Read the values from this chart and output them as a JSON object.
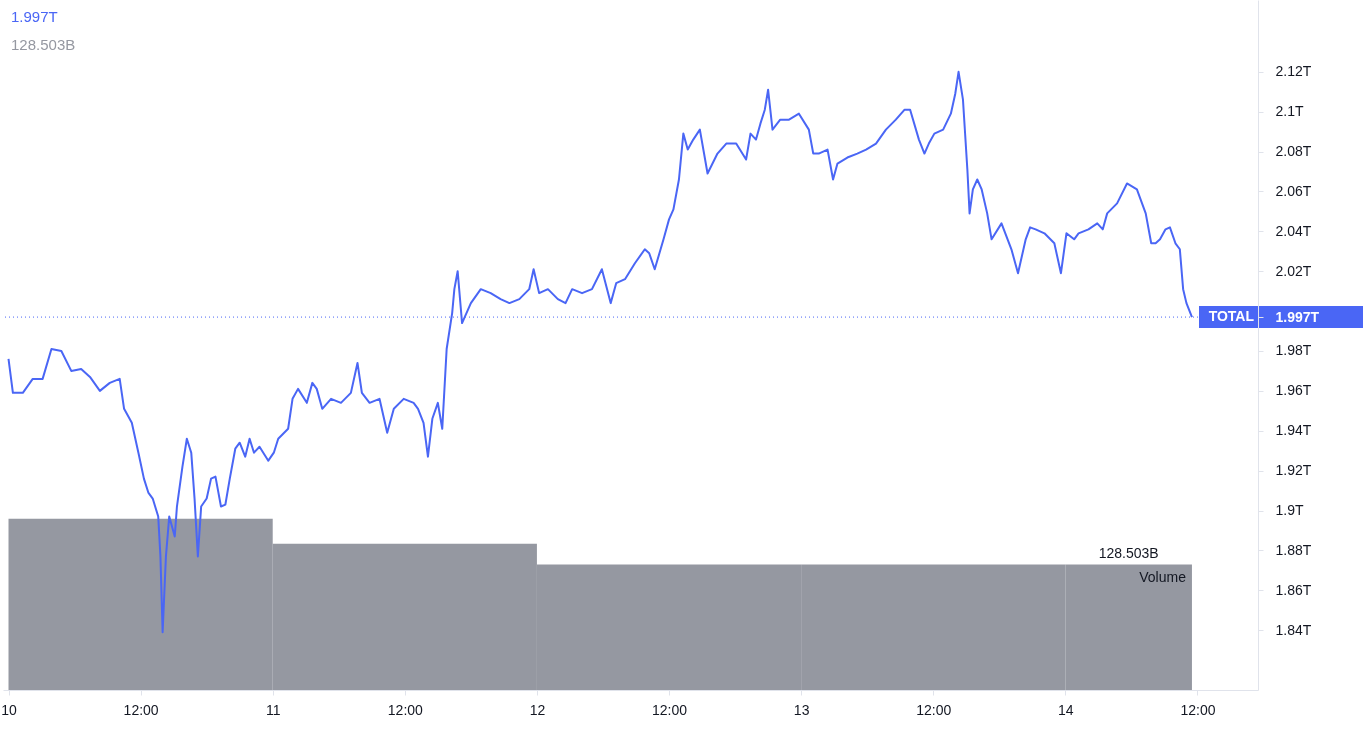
{
  "chart_data": {
    "type": "line",
    "xlim": [
      "--01-09T23:30",
      "--01-14T17:30"
    ],
    "xticks": [
      {
        "value": "--01-10",
        "label": "10"
      },
      {
        "value": "--01-10T12:00",
        "label": "12:00"
      },
      {
        "value": "--01-11",
        "label": "11"
      },
      {
        "value": "--01-11T12:00",
        "label": "12:00"
      },
      {
        "value": "--01-12",
        "label": "12"
      },
      {
        "value": "--01-12T12:00",
        "label": "12:00"
      },
      {
        "value": "--01-13",
        "label": "13"
      },
      {
        "value": "--01-13T12:00",
        "label": "12:00"
      },
      {
        "value": "--01-14",
        "label": "14"
      },
      {
        "value": "--01-14T12:00",
        "label": "12:00"
      }
    ],
    "ylim": [
      1.81,
      2.156
    ],
    "yticks": [
      {
        "value": 1.84,
        "label": "1.84T"
      },
      {
        "value": 1.86,
        "label": "1.86T"
      },
      {
        "value": 1.88,
        "label": "1.88T"
      },
      {
        "value": 1.9,
        "label": "1.9T"
      },
      {
        "value": 1.92,
        "label": "1.92T"
      },
      {
        "value": 1.94,
        "label": "1.94T"
      },
      {
        "value": 1.96,
        "label": "1.96T"
      },
      {
        "value": 1.98,
        "label": "1.98T"
      },
      {
        "value": 1.997,
        "label": "1.997T"
      },
      {
        "value": 2.02,
        "label": "2.02T"
      },
      {
        "value": 2.04,
        "label": "2.04T"
      },
      {
        "value": 2.06,
        "label": "2.06T"
      },
      {
        "value": 2.08,
        "label": "2.08T"
      },
      {
        "value": 2.1,
        "label": "2.1T"
      },
      {
        "value": 2.12,
        "label": "2.12T"
      }
    ],
    "y2lim": [
      0,
      706.8
    ],
    "y2label": "Volume",
    "annotations": [
      "1.997T",
      "128.503B"
    ],
    "ref_lines": [
      {
        "axis": "y",
        "value": 1.997,
        "label": "TOTAL",
        "color": "#4a66f5",
        "line_style": "dotted"
      }
    ],
    "series": [
      {
        "type": "bar",
        "axis": "y2",
        "color": "#9598a1",
        "x": [
          "--01-10T12:00",
          "--01-11T12:00",
          "--01-12T12:00",
          "--01-13T12:00",
          "--01-14T05:45"
        ],
        "values": [
          175.4,
          149.9,
          128.5,
          128.5,
          128.503
        ],
        "value_labels": [
          null,
          null,
          null,
          null,
          "128.503B"
        ]
      },
      {
        "color": "#4a66f5",
        "x": [
          "--01-10T00:00",
          "--01-10T00:24",
          "--01-10T01:18",
          "--01-10T02:12",
          "--01-10T03:06",
          "--01-10T03:54",
          "--01-10T04:48",
          "--01-10T05:42",
          "--01-10T06:36",
          "--01-10T07:24",
          "--01-10T08:18",
          "--01-10T09:12",
          "--01-10T10:06",
          "--01-10T10:30",
          "--01-10T11:12",
          "--01-10T11:48",
          "--01-10T12:18",
          "--01-10T12:42",
          "--01-10T13:06",
          "--01-10T13:36",
          "--01-10T13:48",
          "--01-10T14:00",
          "--01-10T14:18",
          "--01-10T14:36",
          "--01-10T15:06",
          "--01-10T15:18",
          "--01-10T15:48",
          "--01-10T16:12",
          "--01-10T16:36",
          "--01-10T16:54",
          "--01-10T17:12",
          "--01-10T17:30",
          "--01-10T18:00",
          "--01-10T18:24",
          "--01-10T18:48",
          "--01-10T19:18",
          "--01-10T19:42",
          "--01-10T20:06",
          "--01-10T20:36",
          "--01-10T21:00",
          "--01-10T21:30",
          "--01-10T21:54",
          "--01-10T22:18",
          "--01-10T22:48",
          "--01-10T23:36",
          "--01-11T00:06",
          "--01-11T00:30",
          "--01-11T01:24",
          "--01-11T01:48",
          "--01-11T02:18",
          "--01-11T03:06",
          "--01-11T03:36",
          "--01-11T04:00",
          "--01-11T04:30",
          "--01-11T05:18",
          "--01-11T06:12",
          "--01-11T07:06",
          "--01-11T07:42",
          "--01-11T08:06",
          "--01-11T08:48",
          "--01-11T09:42",
          "--01-11T10:24",
          "--01-11T11:00",
          "--01-11T11:54",
          "--01-11T12:48",
          "--01-11T13:12",
          "--01-11T13:42",
          "--01-11T14:06",
          "--01-11T14:30",
          "--01-11T15:00",
          "--01-11T15:24",
          "--01-11T15:48",
          "--01-11T16:18",
          "--01-11T16:30",
          "--01-11T16:48",
          "--01-11T17:12",
          "--01-11T18:00",
          "--01-11T18:54",
          "--01-11T19:48",
          "--01-11T20:42",
          "--01-11T21:30",
          "--01-11T22:24",
          "--01-11T23:18",
          "--01-11T23:42",
          "--01-12T00:12",
          "--01-12T01:00",
          "--01-12T01:54",
          "--01-12T02:36",
          "--01-12T03:12",
          "--01-12T04:06",
          "--01-12T05:00",
          "--01-12T05:54",
          "--01-12T06:42",
          "--01-12T07:12",
          "--01-12T08:00",
          "--01-12T08:54",
          "--01-12T09:48",
          "--01-12T10:12",
          "--01-12T10:42",
          "--01-12T11:30",
          "--01-12T12:00",
          "--01-12T12:24",
          "--01-12T12:54",
          "--01-12T13:18",
          "--01-12T13:42",
          "--01-12T14:12",
          "--01-12T14:48",
          "--01-12T15:30",
          "--01-12T16:24",
          "--01-12T17:12",
          "--01-12T18:06",
          "--01-12T19:00",
          "--01-12T19:24",
          "--01-12T19:54",
          "--01-12T20:18",
          "--01-12T20:42",
          "--01-12T21:00",
          "--01-12T21:24",
          "--01-12T22:06",
          "--01-12T22:54",
          "--01-12T23:48",
          "--01-13T00:42",
          "--01-13T01:06",
          "--01-13T01:36",
          "--01-13T02:24",
          "--01-13T02:54",
          "--01-13T03:18",
          "--01-13T04:12",
          "--01-13T05:06",
          "--01-13T05:54",
          "--01-13T06:48",
          "--01-13T07:42",
          "--01-13T08:36",
          "--01-13T09:24",
          "--01-13T09:54",
          "--01-13T10:42",
          "--01-13T11:12",
          "--01-13T11:36",
          "--01-13T12:06",
          "--01-13T12:54",
          "--01-13T13:36",
          "--01-13T14:00",
          "--01-13T14:18",
          "--01-13T14:42",
          "--01-13T15:06",
          "--01-13T15:18",
          "--01-13T15:36",
          "--01-13T16:00",
          "--01-13T16:24",
          "--01-13T16:54",
          "--01-13T17:18",
          "--01-13T18:12",
          "--01-13T19:06",
          "--01-13T19:42",
          "--01-13T20:24",
          "--01-13T20:48",
          "--01-13T21:18",
          "--01-13T22:06",
          "--01-13T23:00",
          "--01-13T23:36",
          "--01-14T00:06",
          "--01-14T00:48",
          "--01-14T01:12",
          "--01-14T02:06",
          "--01-14T02:54",
          "--01-14T03:24",
          "--01-14T03:48",
          "--01-14T04:42",
          "--01-14T05:36",
          "--01-14T06:30",
          "--01-14T07:18",
          "--01-14T07:48",
          "--01-14T08:12",
          "--01-14T08:36",
          "--01-14T09:06",
          "--01-14T09:30",
          "--01-14T10:00",
          "--01-14T10:24",
          "--01-14T10:42",
          "--01-14T11:00",
          "--01-14T11:30"
        ],
        "values": [
          1.976,
          1.959,
          1.959,
          1.966,
          1.966,
          1.981,
          1.98,
          1.97,
          1.971,
          1.967,
          1.96,
          1.964,
          1.966,
          1.951,
          1.944,
          1.929,
          1.916,
          1.909,
          1.906,
          1.897,
          1.877,
          1.839,
          1.877,
          1.897,
          1.887,
          1.902,
          1.922,
          1.936,
          1.929,
          1.906,
          1.877,
          1.902,
          1.906,
          1.916,
          1.917,
          1.902,
          1.903,
          1.916,
          1.931,
          1.934,
          1.927,
          1.936,
          1.929,
          1.932,
          1.925,
          1.929,
          1.936,
          1.941,
          1.956,
          1.961,
          1.954,
          1.964,
          1.961,
          1.951,
          1.956,
          1.954,
          1.959,
          1.974,
          1.959,
          1.954,
          1.956,
          1.939,
          1.951,
          1.956,
          1.954,
          1.951,
          1.944,
          1.927,
          1.946,
          1.954,
          1.941,
          1.981,
          1.999,
          2.011,
          2.02,
          1.994,
          2.004,
          2.011,
          2.009,
          2.006,
          2.004,
          2.006,
          2.011,
          2.021,
          2.009,
          2.011,
          2.006,
          2.004,
          2.011,
          2.009,
          2.011,
          2.021,
          2.004,
          2.014,
          2.016,
          2.024,
          2.031,
          2.029,
          2.021,
          2.036,
          2.046,
          2.051,
          2.066,
          2.089,
          2.081,
          2.086,
          2.091,
          2.069,
          2.079,
          2.084,
          2.084,
          2.076,
          2.089,
          2.086,
          2.094,
          2.101,
          2.111,
          2.091,
          2.096,
          2.096,
          2.099,
          2.091,
          2.079,
          2.079,
          2.081,
          2.066,
          2.074,
          2.077,
          2.079,
          2.081,
          2.084,
          2.091,
          2.096,
          2.101,
          2.101,
          2.086,
          2.079,
          2.084,
          2.089,
          2.091,
          2.099,
          2.109,
          2.12,
          2.106,
          2.071,
          2.049,
          2.061,
          2.066,
          2.061,
          2.049,
          2.036,
          2.044,
          2.031,
          2.019,
          2.036,
          2.042,
          2.041,
          2.039,
          2.034,
          2.019,
          2.039,
          2.036,
          2.039,
          2.041,
          2.044,
          2.041,
          2.049,
          2.054,
          2.064,
          2.061,
          2.049,
          2.034,
          2.034,
          2.036,
          2.041,
          2.042,
          2.034,
          2.031,
          2.011,
          2.004,
          1.997
        ]
      }
    ]
  }
}
